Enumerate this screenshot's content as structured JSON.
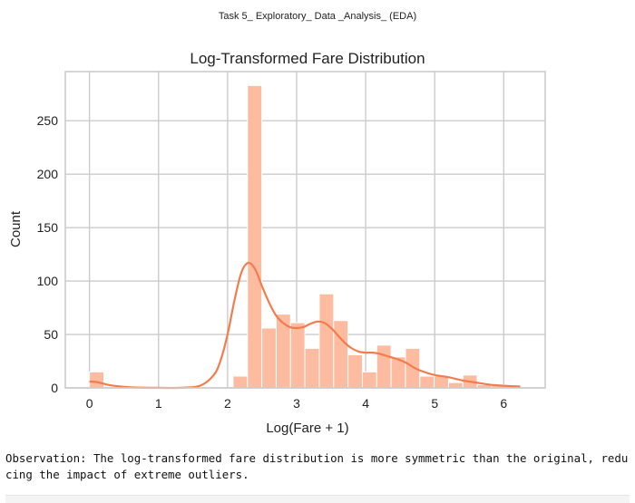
{
  "document": {
    "header": "Task 5_ Exploratory_ Data _Analysis_ (EDA)",
    "observation": "Observation: The log-transformed fare distribution is more symmetric than the original, reducing the impact of extreme outliers."
  },
  "colors": {
    "bar_fill": "#fdbba0",
    "bar_stroke": "#ffffff",
    "kde_line": "#f47c4c",
    "plot_background": "#ffffff",
    "grid": "#cccccc",
    "axes_border": "#cccccc",
    "text": "#222222"
  },
  "chart_data": {
    "type": "bar",
    "variant": "histogram-with-kde",
    "title": "Log-Transformed Fare Distribution",
    "xlabel": "Log(Fare + 1)",
    "ylabel": "Count",
    "xlim": [
      -0.35,
      6.6
    ],
    "ylim": [
      0,
      296
    ],
    "xticks": [
      0,
      1,
      2,
      3,
      4,
      5,
      6
    ],
    "yticks": [
      0,
      50,
      100,
      150,
      200,
      250
    ],
    "grid": true,
    "legend": "none",
    "bin_edges": [
      0.0,
      0.208,
      0.416,
      0.624,
      0.832,
      1.04,
      1.248,
      1.456,
      1.664,
      1.872,
      2.08,
      2.288,
      2.496,
      2.704,
      2.912,
      3.12,
      3.328,
      3.536,
      3.744,
      3.952,
      4.16,
      4.368,
      4.576,
      4.784,
      4.992,
      5.2,
      5.408,
      5.616,
      5.824,
      6.032,
      6.24
    ],
    "counts": [
      15,
      0,
      0,
      0,
      0,
      0,
      0,
      0,
      0,
      0,
      11,
      283,
      56,
      69,
      61,
      37,
      88,
      63,
      31,
      15,
      40,
      29,
      37,
      11,
      11,
      5,
      12,
      3,
      3,
      3
    ],
    "kde": {
      "x": [
        0.0,
        0.1,
        0.2,
        0.3,
        0.5,
        0.7,
        1.0,
        1.3,
        1.6,
        1.8,
        1.9,
        2.0,
        2.1,
        2.2,
        2.3,
        2.4,
        2.5,
        2.6,
        2.7,
        2.8,
        2.9,
        3.0,
        3.1,
        3.2,
        3.3,
        3.4,
        3.5,
        3.6,
        3.7,
        3.8,
        3.9,
        4.0,
        4.1,
        4.2,
        4.3,
        4.4,
        4.5,
        4.6,
        4.7,
        4.8,
        5.0,
        5.2,
        5.4,
        5.6,
        5.8,
        6.0,
        6.24
      ],
      "y": [
        6,
        5.5,
        4,
        2.5,
        1,
        0.3,
        0.1,
        0.1,
        2,
        12,
        26,
        50,
        82,
        108,
        117,
        111,
        95,
        80,
        68,
        61,
        57,
        56,
        57,
        60,
        62,
        61,
        56,
        49,
        42,
        37,
        34,
        33,
        33,
        32,
        30,
        28,
        26,
        23,
        19,
        16,
        12,
        10,
        7,
        5,
        3,
        2,
        1
      ]
    }
  }
}
